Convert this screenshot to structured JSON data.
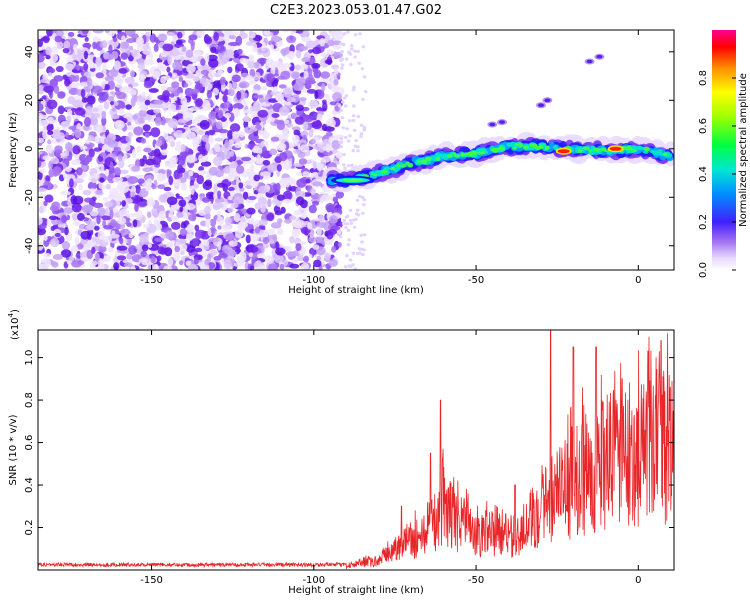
{
  "title": "C2E3.2023.053.01.47.G02",
  "chart_data": [
    {
      "type": "heatmap",
      "name": "spectrogram",
      "xlabel": "Height of straight line (km)",
      "ylabel": "Frequency (Hz)",
      "xlim": [
        -185,
        11
      ],
      "ylim": [
        -50,
        49
      ],
      "xticks": [
        -150,
        -100,
        -50,
        0
      ],
      "yticks": [
        -40,
        -20,
        0,
        20,
        40
      ],
      "noise_region_x": [
        -185,
        -92
      ],
      "signal_path": [
        [
          -95,
          -13
        ],
        [
          -88,
          -13
        ],
        [
          -80,
          -10
        ],
        [
          -70,
          -6
        ],
        [
          -60,
          -3
        ],
        [
          -50,
          -2
        ],
        [
          -40,
          1
        ],
        [
          -30,
          1
        ],
        [
          -20,
          0
        ],
        [
          -10,
          -1
        ],
        [
          0,
          0
        ],
        [
          10,
          -3
        ]
      ],
      "hot_spots": [
        [
          -23,
          -1
        ],
        [
          -7,
          0
        ]
      ],
      "colorbar": {
        "label": "Normalized spectral amplitude",
        "range": [
          0,
          1
        ],
        "ticks": [
          0.0,
          0.2,
          0.4,
          0.6,
          0.8
        ]
      }
    },
    {
      "type": "line",
      "name": "snr",
      "xlabel": "Height of straight line (km)",
      "ylabel": "SNR (10 * v/v)",
      "scale_label_base": "(x10",
      "scale_label_exp": "4",
      "scale_label_close": ")",
      "xlim": [
        -185,
        11
      ],
      "ylim": [
        0,
        1.13
      ],
      "xticks": [
        -150,
        -100,
        -50,
        0
      ],
      "yticks": [
        0.2,
        0.4,
        0.6,
        0.8,
        1.0
      ],
      "envelope": [
        [
          -185,
          0.03
        ],
        [
          -90,
          0.03
        ],
        [
          -80,
          0.06
        ],
        [
          -75,
          0.14
        ],
        [
          -70,
          0.2
        ],
        [
          -65,
          0.24
        ],
        [
          -60,
          0.42
        ],
        [
          -57,
          0.35
        ],
        [
          -50,
          0.22
        ],
        [
          -42,
          0.26
        ],
        [
          -38,
          0.18
        ],
        [
          -34,
          0.32
        ],
        [
          -30,
          0.42
        ],
        [
          -25,
          0.5
        ],
        [
          -20,
          0.58
        ],
        [
          -15,
          0.66
        ],
        [
          -10,
          0.72
        ],
        [
          -5,
          0.76
        ],
        [
          0,
          0.78
        ],
        [
          5,
          0.82
        ],
        [
          11,
          0.82
        ]
      ],
      "peaks": [
        [
          -73,
          0.3
        ],
        [
          -64,
          0.55
        ],
        [
          -61,
          0.8
        ],
        [
          -38,
          0.4
        ],
        [
          -27,
          1.13
        ],
        [
          -20,
          1.05
        ],
        [
          -13,
          1.05
        ],
        [
          -5,
          0.9
        ],
        [
          3,
          1.03
        ],
        [
          7,
          1.08
        ]
      ]
    }
  ]
}
